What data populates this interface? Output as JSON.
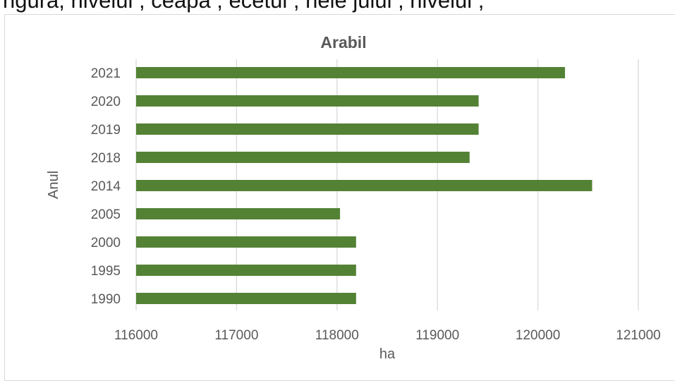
{
  "top_text": "ngura, nivelul   , ceapa    , ecetul   , nele    jului   , nivelul   ,",
  "colors": {
    "bar": "#548235",
    "grid": "#d9d9d9",
    "text": "#595959"
  },
  "chart_data": {
    "type": "bar",
    "orientation": "horizontal",
    "title": "Arabil",
    "xlabel": "ha",
    "ylabel": "Anul",
    "categories": [
      "2021",
      "2020",
      "2019",
      "2018",
      "2014",
      "2005",
      "2000",
      "1995",
      "1990"
    ],
    "values": [
      120270,
      119410,
      119410,
      119320,
      120540,
      118030,
      118190,
      118190,
      118190
    ],
    "xlim": [
      116000,
      121000
    ],
    "xticks": [
      "116000",
      "117000",
      "118000",
      "119000",
      "120000",
      "121000"
    ],
    "grid": "vertical",
    "legend": "none"
  }
}
